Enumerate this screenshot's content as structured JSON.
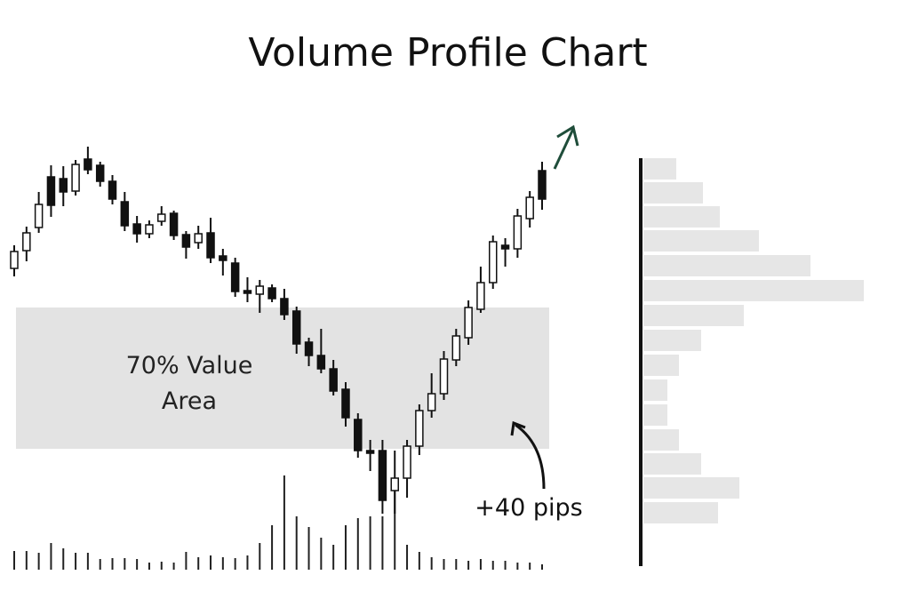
{
  "chart_data": {
    "type": "candlestick",
    "title": "Volume Profile Chart",
    "ylim": [
      0,
      683
    ],
    "up_color": "#ffffff",
    "down_color": "#111111",
    "open": [
      381,
      401,
      427,
      484,
      482,
      468,
      504,
      497,
      479,
      456,
      431,
      420,
      434,
      443,
      419,
      410,
      421,
      395,
      387,
      356,
      352,
      359,
      347,
      333,
      298,
      283,
      268,
      245,
      211,
      176,
      176,
      131,
      145,
      181,
      221,
      240,
      278,
      303,
      335,
      365,
      407,
      403,
      437,
      491
    ],
    "high": [
      407,
      428,
      467,
      497,
      496,
      503,
      518,
      501,
      486,
      467,
      440,
      435,
      451,
      446,
      423,
      429,
      438,
      403,
      393,
      371,
      368,
      363,
      358,
      338,
      303,
      313,
      278,
      253,
      218,
      188,
      188,
      176,
      188,
      228,
      263,
      288,
      313,
      345,
      383,
      418,
      415,
      448,
      468,
      501
    ],
    "low": [
      372,
      389,
      421,
      439,
      451,
      463,
      487,
      473,
      453,
      423,
      410,
      415,
      429,
      413,
      392,
      403,
      387,
      373,
      349,
      343,
      331,
      343,
      323,
      285,
      271,
      263,
      238,
      203,
      168,
      153,
      105,
      105,
      123,
      171,
      213,
      233,
      271,
      295,
      331,
      358,
      383,
      393,
      427,
      447
    ],
    "close": [
      400,
      421,
      453,
      452,
      467,
      498,
      492,
      479,
      459,
      429,
      420,
      430,
      442,
      418,
      405,
      420,
      393,
      390,
      355,
      353,
      361,
      347,
      329,
      296,
      283,
      268,
      243,
      213,
      176,
      173,
      120,
      145,
      181,
      221,
      240,
      279,
      305,
      337,
      365,
      411,
      403,
      440,
      461,
      459
    ],
    "volume": [
      21,
      21,
      19,
      30,
      24,
      19,
      19,
      12,
      13,
      13,
      12,
      8,
      9,
      8,
      20,
      14,
      16,
      14,
      13,
      16,
      30,
      50,
      106,
      60,
      48,
      36,
      28,
      50,
      58,
      60,
      60,
      100,
      28,
      20,
      14,
      12,
      12,
      10,
      12,
      10,
      10,
      8,
      8,
      6
    ],
    "volume_lim": [
      0,
      110
    ],
    "volume_color": "#222222",
    "profile": {
      "price_levels": [
        493,
        466,
        439,
        412,
        384,
        356,
        328,
        300,
        272,
        244,
        216,
        188,
        161,
        134,
        106
      ],
      "volumes": [
        37,
        67,
        86,
        130,
        188,
        248,
        113,
        65,
        40,
        27,
        27,
        40,
        65,
        108,
        84
      ],
      "xlim": [
        0,
        260
      ],
      "color": "#e6e6e6"
    },
    "value_area": {
      "label": "70% Value Area",
      "range": [
        178,
        337
      ],
      "color": "#e3e3e3"
    },
    "annotation": "+40 pips"
  }
}
